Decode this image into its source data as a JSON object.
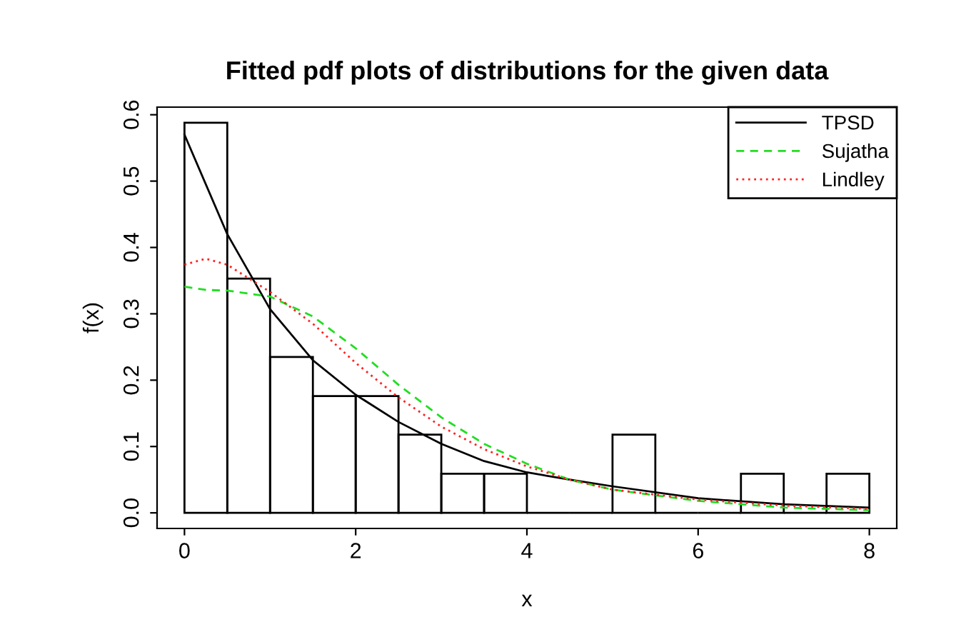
{
  "chart_data": {
    "type": "histogram",
    "title": "Fitted pdf plots of distributions for the given data",
    "xlabel": "x",
    "ylabel": "f(x)",
    "xlim": [
      -0.32,
      8.32
    ],
    "ylim": [
      -0.0235,
      0.6115
    ],
    "xticks": [
      0,
      2,
      4,
      6,
      8
    ],
    "yticks": [
      {
        "value": 0.0,
        "label": "0.0"
      },
      0.1,
      0.2,
      0.3,
      0.4,
      0.5,
      0.6
    ],
    "grid": false,
    "legend": "top right",
    "series": [
      {
        "color": "#000000",
        "bins": [
          0,
          0.5,
          1,
          1.5,
          2,
          2.5,
          3,
          3.5,
          4,
          4.5,
          5,
          5.5,
          6,
          6.5,
          7,
          7.5,
          8
        ],
        "values": [
          0.588,
          0.353,
          0.235,
          0.176,
          0.176,
          0.118,
          0.059,
          0.059,
          0,
          0,
          0.118,
          0,
          0,
          0.059,
          0,
          0.059
        ]
      },
      {
        "type": "line",
        "name": "TPSD",
        "color": "#000000",
        "line_style": "solid",
        "x": [
          0,
          0.5,
          1,
          1.5,
          2,
          2.5,
          3,
          3.5,
          4,
          4.5,
          5,
          6,
          7,
          8
        ],
        "values": [
          0.57,
          0.42,
          0.307,
          0.23,
          0.178,
          0.137,
          0.104,
          0.078,
          0.061,
          0.05,
          0.04,
          0.022,
          0.013,
          0.008
        ]
      },
      {
        "type": "line",
        "name": "Sujatha",
        "color": "#22dd22",
        "line_style": "dashed",
        "x": [
          0,
          0.25,
          0.5,
          1,
          1.5,
          2,
          2.5,
          3,
          3.5,
          4,
          4.5,
          5,
          6,
          7,
          8
        ],
        "values": [
          0.341,
          0.336,
          0.335,
          0.326,
          0.296,
          0.248,
          0.193,
          0.144,
          0.104,
          0.074,
          0.05,
          0.035,
          0.018,
          0.008,
          0.004
        ]
      },
      {
        "type": "line",
        "name": "Lindley",
        "color": "#ff2222",
        "line_style": "dotted",
        "x": [
          0,
          0.25,
          0.5,
          1,
          1.5,
          2,
          2.5,
          3,
          3.5,
          4,
          4.5,
          5,
          6,
          7,
          8
        ],
        "values": [
          0.374,
          0.383,
          0.374,
          0.333,
          0.285,
          0.226,
          0.174,
          0.13,
          0.096,
          0.07,
          0.05,
          0.035,
          0.02,
          0.011,
          0.006
        ]
      }
    ]
  }
}
